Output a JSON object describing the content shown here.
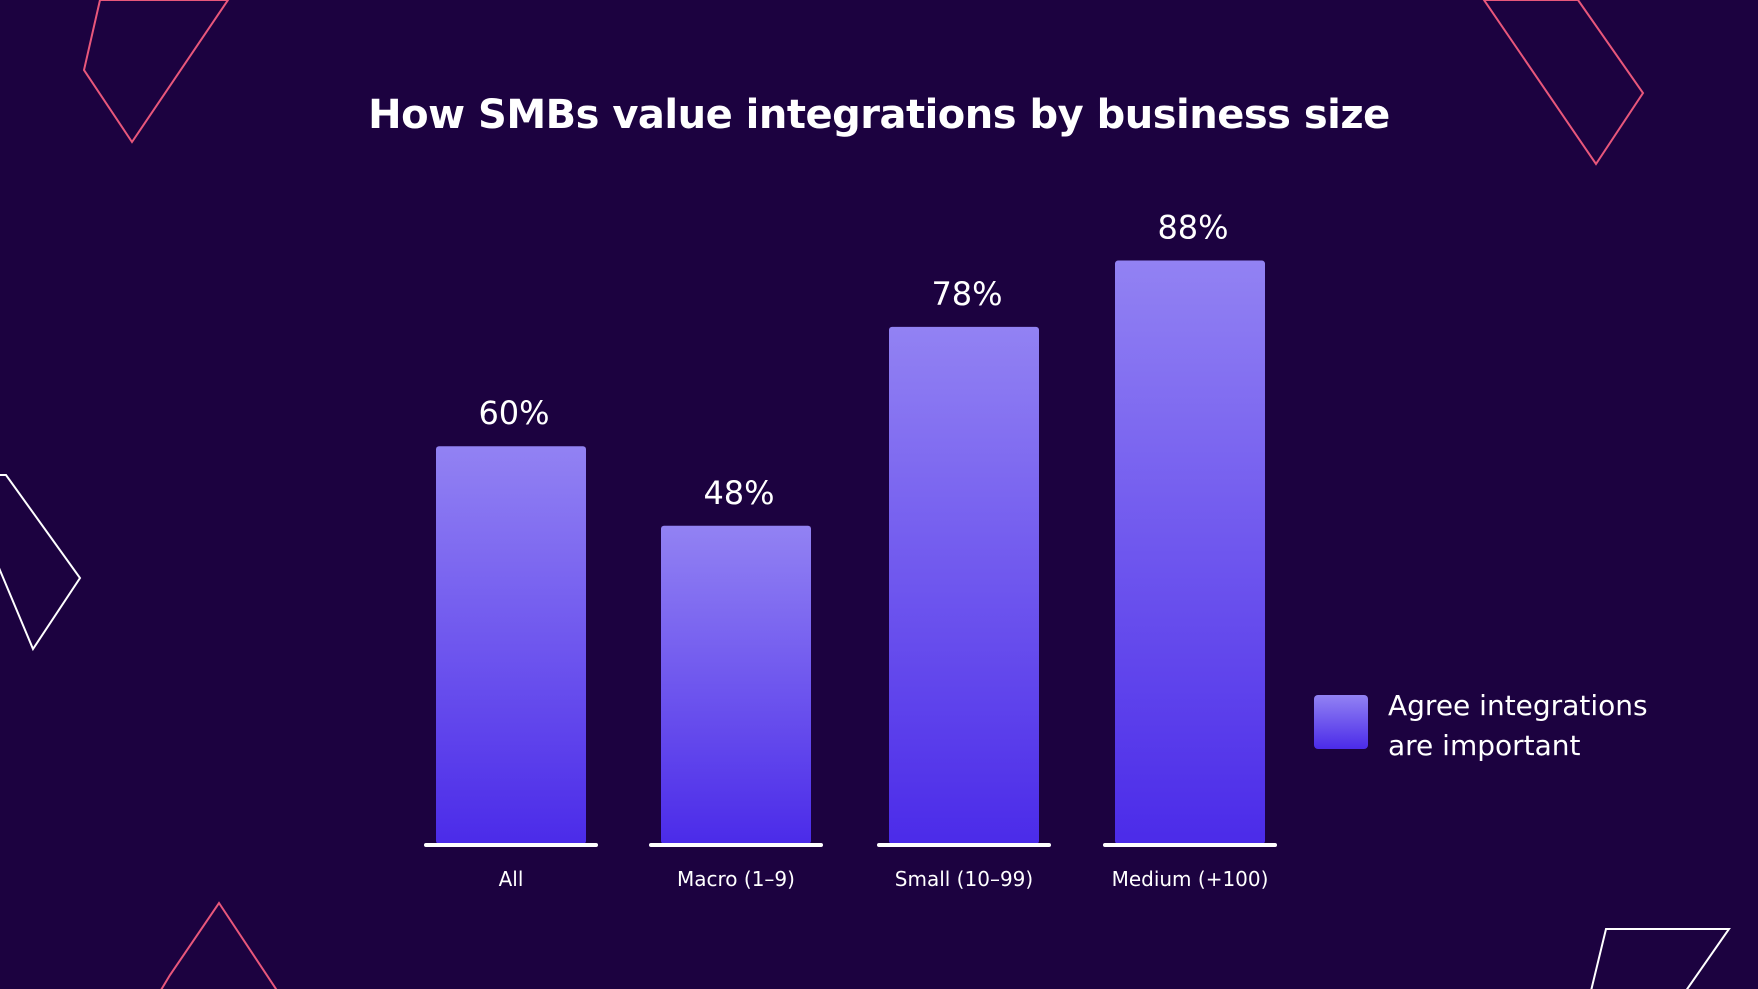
{
  "colors": {
    "background": "#1c0240",
    "bar_top": "#9282f3",
    "bar_bottom": "#4b2be9",
    "baseline": "#ffffff",
    "deco_pink": "#e8577b",
    "deco_white": "#ffffff"
  },
  "legend": {
    "label": "Agree integrations are important"
  },
  "chart_data": {
    "type": "bar",
    "title": "How SMBs value integrations by business size",
    "categories": [
      "All",
      "Macro (1–9)",
      "Small (10–99)",
      "Medium (+100)"
    ],
    "series": [
      {
        "name": "Agree integrations are important",
        "values": [
          60,
          48,
          78,
          88
        ]
      }
    ],
    "value_labels": [
      "60%",
      "48%",
      "78%",
      "88%"
    ],
    "ylim": [
      0,
      100
    ],
    "grid": false,
    "legend_position": "right"
  }
}
